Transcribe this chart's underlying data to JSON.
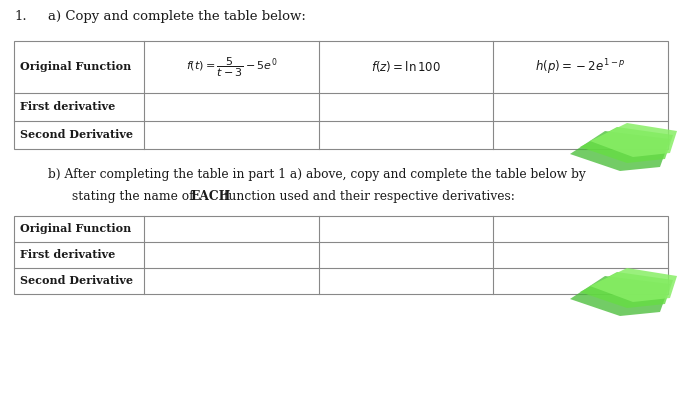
{
  "title_number": "1.",
  "title_a": "a) Copy and complete the table below:",
  "title_b_line1": "b) After completing the table in part 1 a) above, copy and complete the table below by",
  "title_b_line2_pre": "stating the name of ",
  "title_b_each": "EACH",
  "title_b_line2_post": " function used and their respective derivatives:",
  "table1_rows": [
    "Original Function",
    "First derivative",
    "Second Derivative"
  ],
  "table2_rows": [
    "Original Function",
    "First derivative",
    "Second Derivative"
  ],
  "cell_f1": "$f(t)=\\dfrac{5}{t-3}-5e^{0}$",
  "cell_f2": "$f(z)=\\ln100$",
  "cell_h": "$h(p)=-2e^{1-p}$",
  "bg_color": "#ffffff",
  "text_color": "#1a1a1a",
  "table_border_color": "#888888",
  "chegg_green1": "#55cc44",
  "chegg_green2": "#88ee66"
}
